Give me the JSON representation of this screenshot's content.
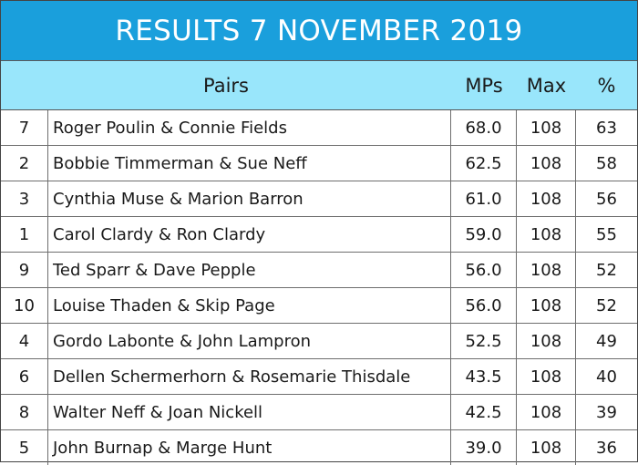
{
  "title": "RESULTS 7 NOVEMBER 2019",
  "headers": {
    "pairs": "Pairs",
    "mps": "MPs",
    "max": "Max",
    "pct": "%"
  },
  "rows": [
    {
      "num": "7",
      "names": "Roger Poulin & Connie Fields",
      "mps": "68.0",
      "max": "108",
      "pct": "63"
    },
    {
      "num": "2",
      "names": "Bobbie Timmerman & Sue Neff",
      "mps": "62.5",
      "max": "108",
      "pct": "58"
    },
    {
      "num": "3",
      "names": "Cynthia Muse & Marion Barron",
      "mps": "61.0",
      "max": "108",
      "pct": "56"
    },
    {
      "num": "1",
      "names": "Carol Clardy & Ron Clardy",
      "mps": "59.0",
      "max": "108",
      "pct": "55"
    },
    {
      "num": "9",
      "names": "Ted Sparr & Dave Pepple",
      "mps": "56.0",
      "max": "108",
      "pct": "52"
    },
    {
      "num": "10",
      "names": "Louise Thaden & Skip Page",
      "mps": "56.0",
      "max": "108",
      "pct": "52"
    },
    {
      "num": "4",
      "names": "Gordo Labonte & John Lampron",
      "mps": "52.5",
      "max": "108",
      "pct": "49"
    },
    {
      "num": "6",
      "names": "Dellen Schermerhorn & Rosemarie Thisdale",
      "mps": "43.5",
      "max": "108",
      "pct": "40"
    },
    {
      "num": "8",
      "names": "Walter Neff & Joan Nickell",
      "mps": "42.5",
      "max": "108",
      "pct": "39"
    },
    {
      "num": "5",
      "names": "John Burnap & Marge Hunt",
      "mps": "39.0",
      "max": "108",
      "pct": "36"
    }
  ],
  "colors": {
    "title_bg": "#1a9fdc",
    "header_bg": "#99e6fb",
    "title_text": "#ffffff"
  }
}
